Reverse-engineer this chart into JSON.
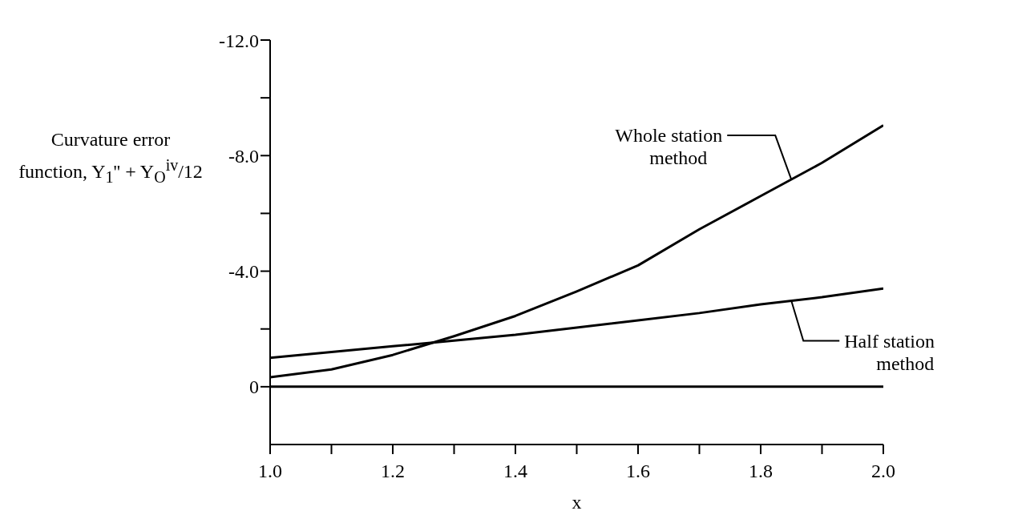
{
  "chart_data": {
    "type": "line",
    "ylabel": "Curvature error function, Y$_{1}$'' + Y$_{O}$$^{iv}$/12",
    "xlabel": "x",
    "x": [
      1.0,
      1.1,
      1.2,
      1.3,
      1.4,
      1.5,
      1.6,
      1.7,
      1.8,
      1.9,
      2.0
    ],
    "series": [
      {
        "name": "Whole station method",
        "color": "#000000",
        "values": [
          -0.33,
          -0.6,
          -1.1,
          -1.75,
          -2.45,
          -3.3,
          -4.2,
          -5.45,
          -6.6,
          -7.75,
          -9.05
        ]
      },
      {
        "name": "Half station method",
        "color": "#000000",
        "values": [
          -1.0,
          -1.2,
          -1.4,
          -1.6,
          -1.8,
          -2.05,
          -2.3,
          -2.55,
          -2.85,
          -3.1,
          -3.4
        ]
      }
    ],
    "ylim": [
      2,
      -12
    ],
    "yticks": [
      {
        "value": -12,
        "label": "-12.0"
      },
      {
        "value": -10,
        "label": null
      },
      {
        "value": -8,
        "label": "-8.0"
      },
      {
        "value": -6,
        "label": null
      },
      {
        "value": -4,
        "label": "-4.0"
      },
      {
        "value": -2,
        "label": null
      },
      0
    ],
    "xlim": [
      1.0,
      2.0
    ],
    "xticks": [
      {
        "value": 1.0,
        "label": "1.0"
      },
      {
        "value": 1.1,
        "label": null
      },
      {
        "value": 1.2,
        "label": "1.2"
      },
      {
        "value": 1.3,
        "label": null
      },
      {
        "value": 1.4,
        "label": "1.4"
      },
      {
        "value": 1.5,
        "label": null
      },
      {
        "value": 1.6,
        "label": "1.6"
      },
      {
        "value": 1.7,
        "label": null
      },
      {
        "value": 1.8,
        "label": "1.8"
      },
      {
        "value": 1.9,
        "label": null
      },
      {
        "value": 2.0,
        "label": "2.0"
      }
    ],
    "ref_lines": [
      {
        "axis": "y",
        "value": 0,
        "color": "#000000"
      }
    ],
    "grid": false,
    "marker": "none",
    "line_style": "solid"
  }
}
